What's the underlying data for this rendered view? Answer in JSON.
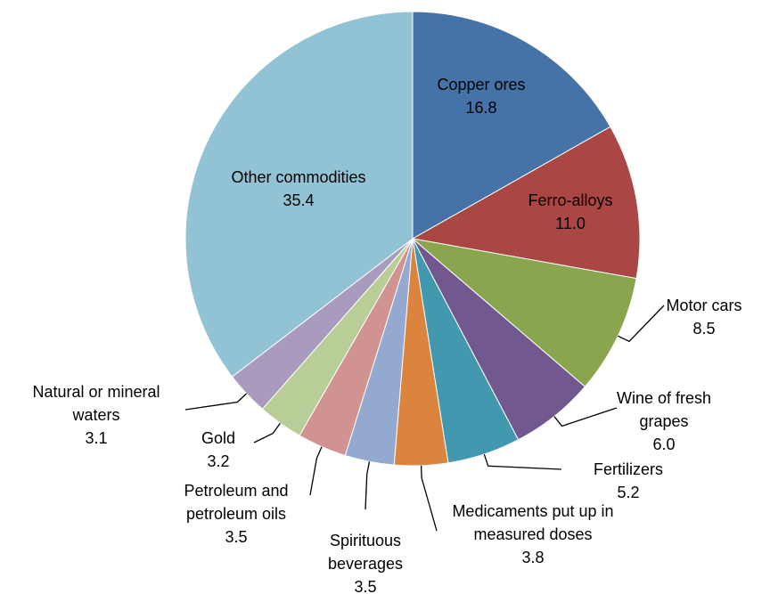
{
  "chart_data": {
    "type": "pie",
    "categories": [
      "Copper ores",
      "Ferro-alloys",
      "Motor cars",
      "Wine of fresh grapes",
      "Fertilizers",
      "Medicaments put up in measured doses",
      "Spirituous beverages",
      "Petroleum and petroleum oils",
      "Gold",
      "Natural or mineral waters",
      "Other commodities"
    ],
    "values": [
      16.8,
      11.0,
      8.5,
      6.0,
      5.2,
      3.8,
      3.5,
      3.5,
      3.2,
      3.1,
      35.4
    ],
    "value_labels": [
      "16.8",
      "11.0",
      "8.5",
      "6.0",
      "5.2",
      "3.8",
      "3.5",
      "3.5",
      "3.2",
      "3.1",
      "35.4"
    ],
    "colors": [
      "#4572a7",
      "#aa4643",
      "#89a54e",
      "#71588f",
      "#4198af",
      "#db843d",
      "#93a9cf",
      "#d19392",
      "#b9cd96",
      "#a99bbd",
      "#92c3d4"
    ]
  }
}
